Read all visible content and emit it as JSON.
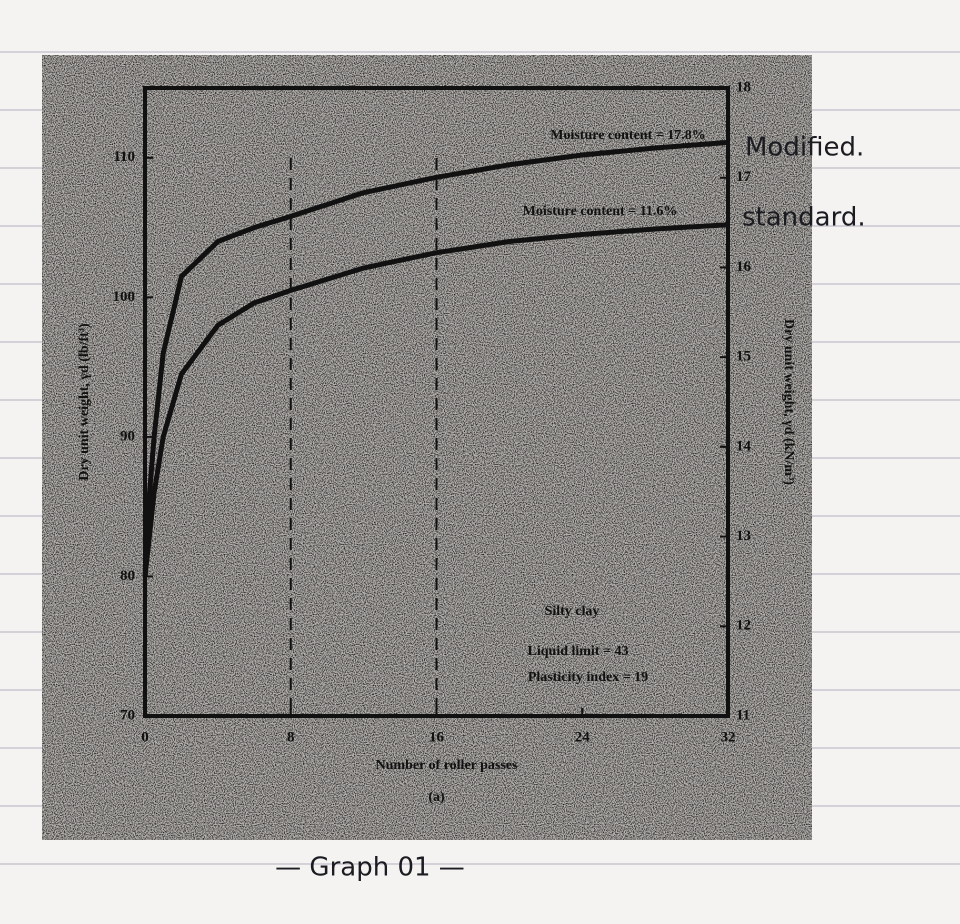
{
  "chart_data": {
    "type": "line",
    "x_label": "Number of roller passes",
    "y_label": "Dry unit weight, γd (lb/ft³)",
    "y2_label": "Dry unit weight, γd (kN/m³)",
    "subcaption": "(a)",
    "x": [
      0,
      0.25,
      0.5,
      1,
      2,
      4,
      6,
      8,
      12,
      16,
      20,
      24,
      28,
      32
    ],
    "series": [
      {
        "name": "Moisture content = 17.8%",
        "color": "#111111",
        "values": [
          80,
          86,
          90,
          96,
          101.5,
          104,
          105,
          105.8,
          107.5,
          108.6,
          109.5,
          110.2,
          110.7,
          111.1
        ]
      },
      {
        "name": "Moisture content = 11.6%",
        "color": "#111111",
        "values": [
          80,
          83,
          86,
          90,
          94.5,
          98,
          99.6,
          100.5,
          102.1,
          103.2,
          104,
          104.5,
          104.9,
          105.2
        ]
      }
    ],
    "reference_lines_x": [
      8,
      16
    ],
    "annotations": [
      "Silty clay",
      "Liquid limit = 43",
      "Plasticity index = 19"
    ],
    "handwritten_notes": [
      "Modified.",
      "standard.",
      "— Graph 01 —"
    ],
    "xlim": [
      0,
      32
    ],
    "xticks": [
      0,
      8,
      16,
      24,
      32
    ],
    "ylim": [
      70,
      115
    ],
    "yticks": [
      70,
      80,
      90,
      100,
      110
    ],
    "y2lim": [
      11,
      18
    ],
    "y2ticks": [
      11,
      12,
      13,
      14,
      15,
      16,
      17,
      18
    ],
    "grid": false
  }
}
